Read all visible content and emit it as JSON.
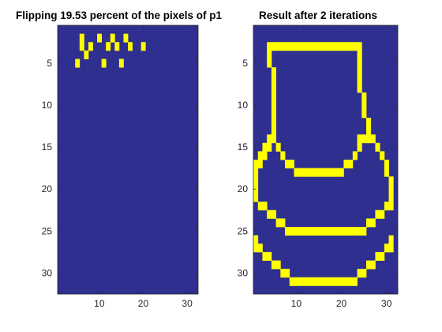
{
  "colors": {
    "background": "#2e2f8f",
    "foreground": "#ffff00"
  },
  "chart_data": [
    {
      "type": "heatmap",
      "title": "Flipping 19.53 percent of the pixels of p1",
      "rows": 32,
      "cols": 32,
      "xlim": [
        0.5,
        32.5
      ],
      "ylim": [
        0.5,
        32.5
      ],
      "x_ticks": [
        10,
        20,
        30
      ],
      "y_ticks": [
        5,
        10,
        15,
        20,
        25,
        30
      ],
      "values": [
        "00000000000000000000000000000000",
        "00000100010010010000000000000000",
        "00000101000101001001000000000000",
        "00000010000000000000000000000000",
        "00001000001000100000000000000000",
        "00000000000000000000000000000000",
        "00000000000000000000000000000000",
        "00000000000000000000000000000000",
        "00000000000000000000000000000000",
        "00000000000000000000000000000000",
        "00000000000000000000000000000000",
        "00000000000000000000000000000000",
        "00000000000000000000000000000000",
        "00000000000000000000000000000000",
        "00000000000000000000000000000000",
        "00000000000000000000000000000000",
        "00000000000000000000000000000000",
        "00000000000000000000000000000000",
        "00000000000000000000000000000000",
        "00000000000000000000000000000000",
        "00000000000000000000000000000000",
        "00000000000000000000000000000000",
        "00000000000000000000000000000000",
        "00000000000000000000000000000000",
        "00000000000000000000000000000000",
        "00000000000000000000000000000000",
        "00000000000000000000000000000000",
        "00000000000000000000000000000000",
        "00000000000000000000000000000000",
        "00000000000000000000000000000000",
        "00000000000000000000000000000000",
        "00000000000000000000000000000000"
      ]
    },
    {
      "type": "heatmap",
      "title": "Result after 2 iterations",
      "rows": 32,
      "cols": 32,
      "xlim": [
        0.5,
        32.5
      ],
      "ylim": [
        0.5,
        32.5
      ],
      "x_ticks": [
        10,
        20,
        30
      ],
      "y_ticks": [
        5,
        10,
        15,
        20,
        25,
        30
      ],
      "values": [
        "00000000000000000000000000000000",
        "00000000000000000000000000000000",
        "00011111111111111111111100000000",
        "00010000000000000000000100000000",
        "00010000000000000000000100000000",
        "00001000000000000000000100000000",
        "00001000000000000000000100000000",
        "00001000000000000000000100000000",
        "00001000000000000000000010000000",
        "00001000000000000000000010000000",
        "00001000000000000000000010000000",
        "00001000000000000000000001000000",
        "00001000000000000000000001000000",
        "00011000000000000000000111100000",
        "00110100000000000000000100010000",
        "01100010000000000000001000001000",
        "11000001100000000000110000000100",
        "10000000011111111111000000000100",
        "10000000000000000000000000000010",
        "10000000000000000000000000000010",
        "10000000000000000000000000000010",
        "01100000000000000000000000000110",
        "00011000000000000000000000011000",
        "00000110000000000000000001100000",
        "00000001111111111111111110000000",
        "10000000000000000000000000000010",
        "11000000000000000000000000000110",
        "00110000000000000000000000011000",
        "00001100000000000000000001100000",
        "00000011000000000000000110000000",
        "00000000111111111111111000000000",
        "00000000000000000000000000000000"
      ]
    }
  ]
}
